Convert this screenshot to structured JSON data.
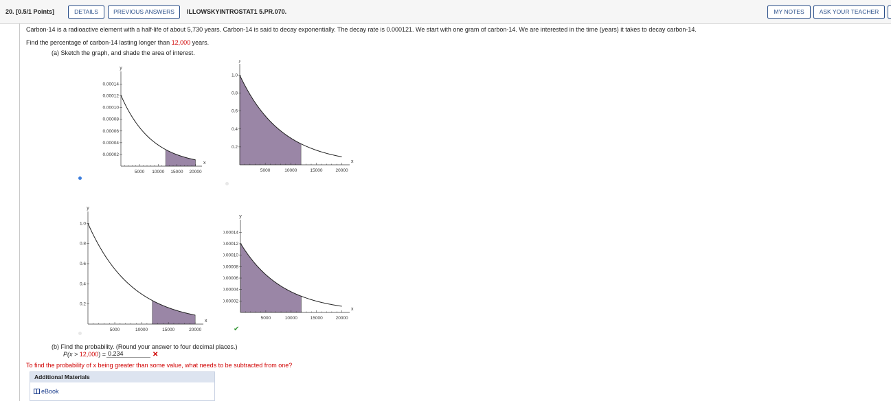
{
  "header": {
    "question_number": "20.",
    "points": "[0.5/1 Points]",
    "details_label": "DETAILS",
    "previous_answers_label": "PREVIOUS ANSWERS",
    "problem_code": "ILLOWSKYINTROSTAT1 5.PR.070.",
    "my_notes_label": "MY NOTES",
    "ask_teacher_label": "ASK YOUR TEACHER"
  },
  "problem": {
    "intro": "Carbon-14 is a radioactive element with a half-life of about 5,730 years. Carbon-14 is said to decay exponentially. The decay rate is 0.000121. We start with one gram of carbon-14. We are interested in the time (years) it takes to decay carbon-14.",
    "find_prefix": "Find the percentage of carbon-14 lasting longer than ",
    "find_value": "12,000",
    "find_suffix": " years.",
    "part_a": "(a) Sketch the graph, and shade the area of interest.",
    "part_b": "(b) Find the probability. (Round your answer to four decimal places.)",
    "prob_expr_prefix": "P(x > ",
    "prob_expr_value": "12,000",
    "prob_expr_suffix": ") = ",
    "answer_value": "0.234",
    "feedback": "To find the probability of x being greater than some value, what needs to be subtracted from one?",
    "wrong_mark": "✕",
    "correct_mark": "✔"
  },
  "graphs": {
    "x_axis_label": "x",
    "y_axis_label": "y",
    "x_ticks": [
      "5000",
      "10000",
      "15000",
      "20000"
    ],
    "small_y_ticks": [
      "0.00014",
      "0.00012",
      "0.00010",
      "0.00008",
      "0.00006",
      "0.00004",
      "0.00002"
    ],
    "large_y_ticks": [
      "1.0",
      "0.8",
      "0.6",
      "0.4",
      "0.2"
    ],
    "options": [
      {
        "y_scale": "density",
        "shade_from": 12000,
        "shade_to": 20000,
        "selected": true
      },
      {
        "y_scale": "unit",
        "shade_from": 0,
        "shade_to": 12000,
        "selected": false
      },
      {
        "y_scale": "unit",
        "shade_from": 12000,
        "shade_to": 20000,
        "selected": false
      },
      {
        "y_scale": "density",
        "shade_from": 0,
        "shade_to": 12000,
        "selected": false
      }
    ],
    "shade_color": "#9a86a6",
    "radio_selected_color": "#3b7ddd"
  },
  "additional": {
    "title": "Additional Materials",
    "ebook_label": "eBook"
  }
}
